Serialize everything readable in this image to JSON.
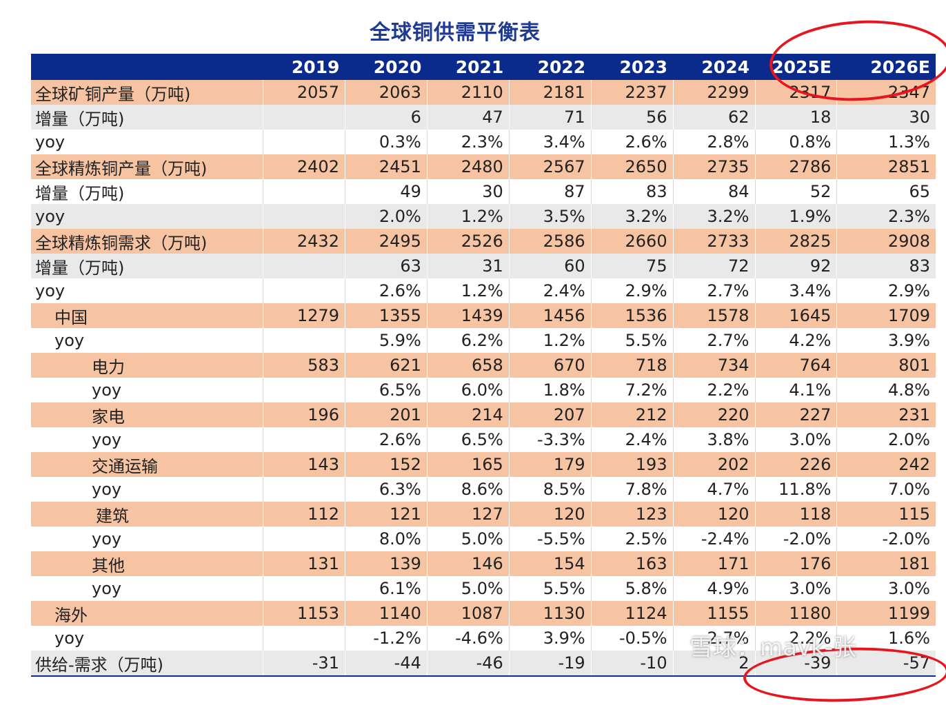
{
  "title": "全球铜供需平衡表",
  "chart_data": {
    "type": "table",
    "columns": [
      "",
      "2019",
      "2020",
      "2021",
      "2022",
      "2023",
      "2024",
      "2025E",
      "2026E"
    ],
    "rows": [
      {
        "label": "全球矿铜产量（万吨)",
        "style": "orange",
        "indent": 0,
        "values": [
          "2057",
          "2063",
          "2110",
          "2181",
          "2237",
          "2299",
          "2317",
          "2347"
        ]
      },
      {
        "label": "增量（万吨)",
        "style": "gray",
        "indent": 0,
        "values": [
          "",
          "6",
          "47",
          "71",
          "56",
          "62",
          "18",
          "30"
        ]
      },
      {
        "label": "yoy",
        "style": "white",
        "indent": 0,
        "values": [
          "",
          "0.3%",
          "2.3%",
          "3.4%",
          "2.6%",
          "2.8%",
          "0.8%",
          "1.3%"
        ]
      },
      {
        "label": "全球精炼铜产量（万吨)",
        "style": "orange",
        "indent": 0,
        "values": [
          "2402",
          "2451",
          "2480",
          "2567",
          "2650",
          "2735",
          "2786",
          "2851"
        ]
      },
      {
        "label": "增量（万吨)",
        "style": "white",
        "indent": 0,
        "values": [
          "",
          "49",
          "30",
          "87",
          "83",
          "84",
          "52",
          "65"
        ]
      },
      {
        "label": "yoy",
        "style": "gray",
        "indent": 0,
        "values": [
          "",
          "2.0%",
          "1.2%",
          "3.5%",
          "3.2%",
          "3.2%",
          "1.9%",
          "2.3%"
        ]
      },
      {
        "label": "全球精炼铜需求（万吨)",
        "style": "orange",
        "indent": 0,
        "values": [
          "2432",
          "2495",
          "2526",
          "2586",
          "2660",
          "2733",
          "2825",
          "2908"
        ]
      },
      {
        "label": "增量（万吨)",
        "style": "gray",
        "indent": 0,
        "values": [
          "",
          "63",
          "31",
          "60",
          "75",
          "72",
          "92",
          "83"
        ]
      },
      {
        "label": "yoy",
        "style": "white",
        "indent": 0,
        "values": [
          "",
          "2.6%",
          "1.2%",
          "2.4%",
          "2.9%",
          "2.7%",
          "3.4%",
          "2.9%"
        ]
      },
      {
        "label": "中国",
        "style": "orange",
        "indent": 1,
        "values": [
          "1279",
          "1355",
          "1439",
          "1456",
          "1536",
          "1578",
          "1645",
          "1709"
        ]
      },
      {
        "label": "yoy",
        "style": "white",
        "indent": 1,
        "values": [
          "",
          "5.9%",
          "6.2%",
          "1.2%",
          "5.5%",
          "2.7%",
          "4.2%",
          "3.9%"
        ]
      },
      {
        "label": "电力",
        "style": "orange",
        "indent": 2,
        "values": [
          "583",
          "621",
          "658",
          "670",
          "718",
          "734",
          "764",
          "801"
        ]
      },
      {
        "label": "yoy",
        "style": "white",
        "indent": 2,
        "values": [
          "",
          "6.5%",
          "6.0%",
          "1.8%",
          "7.2%",
          "2.2%",
          "4.1%",
          "4.8%"
        ]
      },
      {
        "label": "家电",
        "style": "orange",
        "indent": 2,
        "values": [
          "196",
          "201",
          "214",
          "207",
          "212",
          "220",
          "227",
          "231"
        ]
      },
      {
        "label": "yoy",
        "style": "white",
        "indent": 2,
        "values": [
          "",
          "2.6%",
          "6.5%",
          "-3.3%",
          "2.4%",
          "3.8%",
          "3.0%",
          "2.0%"
        ]
      },
      {
        "label": "交通运输",
        "style": "orange",
        "indent": 2,
        "values": [
          "143",
          "152",
          "165",
          "179",
          "193",
          "202",
          "226",
          "242"
        ]
      },
      {
        "label": "yoy",
        "style": "white",
        "indent": 2,
        "values": [
          "",
          "6.3%",
          "8.6%",
          "8.5%",
          "7.8%",
          "4.7%",
          "11.8%",
          "7.0%"
        ]
      },
      {
        "label": "建筑",
        "style": "orange",
        "indent": 3,
        "values": [
          "112",
          "121",
          "127",
          "120",
          "123",
          "120",
          "118",
          "115"
        ]
      },
      {
        "label": "yoy",
        "style": "white",
        "indent": 2,
        "values": [
          "",
          "8.0%",
          "5.0%",
          "-5.5%",
          "2.5%",
          "-2.4%",
          "-2.0%",
          "-2.0%"
        ]
      },
      {
        "label": "其他",
        "style": "orange",
        "indent": 2,
        "values": [
          "131",
          "139",
          "146",
          "154",
          "163",
          "171",
          "176",
          "181"
        ]
      },
      {
        "label": "yoy",
        "style": "white",
        "indent": 2,
        "values": [
          "",
          "6.1%",
          "5.0%",
          "5.5%",
          "5.8%",
          "4.9%",
          "3.0%",
          "3.0%"
        ]
      },
      {
        "label": "海外",
        "style": "orange",
        "indent": 1,
        "values": [
          "1153",
          "1140",
          "1087",
          "1130",
          "1124",
          "1155",
          "1180",
          "1199"
        ]
      },
      {
        "label": "yoy",
        "style": "white",
        "indent": 1,
        "values": [
          "",
          "-1.2%",
          "-4.6%",
          "3.9%",
          "-0.5%",
          "2.7%",
          "2.2%",
          "1.6%"
        ]
      },
      {
        "label": "供给-需求（万吨)",
        "style": "gray",
        "indent": 0,
        "values": [
          "-31",
          "-44",
          "-46",
          "-19",
          "-10",
          "2",
          "-39",
          "-57"
        ]
      }
    ]
  },
  "watermark": "雪球：mavk-张",
  "colors": {
    "header": "#0a2a8c",
    "orange": "#f6c4a3",
    "gray": "#e9e9e9",
    "circle": "#e8141e"
  }
}
